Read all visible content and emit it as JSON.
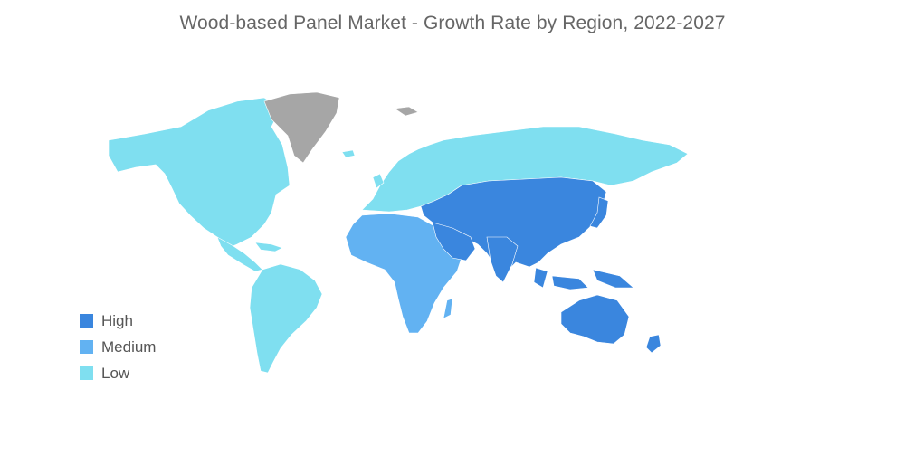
{
  "title": "Wood-based Panel Market - Growth Rate by Region, 2022-2027",
  "colors": {
    "high": "#3a86de",
    "medium": "#62b2f2",
    "low": "#7fdff0",
    "no_data": "#a6a6a6",
    "background": "#ffffff"
  },
  "legend": [
    {
      "label": "High",
      "color": "#3a86de"
    },
    {
      "label": "Medium",
      "color": "#62b2f2"
    },
    {
      "label": "Low",
      "color": "#7fdff0"
    }
  ],
  "regions": [
    {
      "name": "North America",
      "level": "low"
    },
    {
      "name": "South America",
      "level": "low"
    },
    {
      "name": "Europe",
      "level": "low"
    },
    {
      "name": "Russia",
      "level": "low"
    },
    {
      "name": "Greenland",
      "level": "no_data"
    },
    {
      "name": "Africa",
      "level": "medium"
    },
    {
      "name": "Middle East",
      "level": "high"
    },
    {
      "name": "Asia",
      "level": "high"
    },
    {
      "name": "Oceania",
      "level": "high"
    }
  ]
}
